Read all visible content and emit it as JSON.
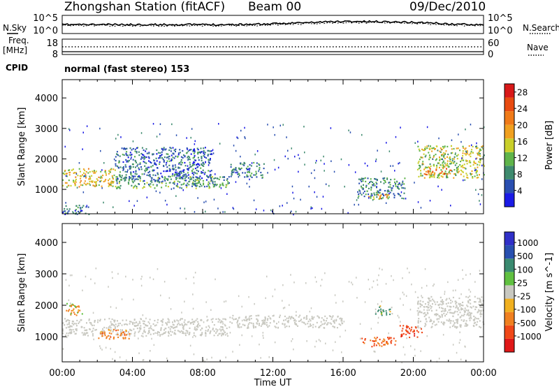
{
  "header": {
    "station": "Zhongshan Station (fitACF)",
    "beam": "Beam 00",
    "date": "09/Dec/2010",
    "mode": "normal (fast stereo) 153"
  },
  "side_labels": {
    "nsky": "N.Sky",
    "nsearch": "N.Search",
    "freq_line1": "Freq.",
    "freq_line2": "[MHz]",
    "nave": "Nave",
    "cpid": "CPID"
  },
  "noise_axis": {
    "left_ticks": [
      "10^5",
      "10^0"
    ],
    "right_ticks": [
      "10^5",
      "10^0"
    ]
  },
  "freq_axis": {
    "left_ticks": [
      "18",
      "8"
    ],
    "right_ticks": [
      "60",
      "0"
    ]
  },
  "colors": {
    "power_scale": [
      "#1a1ae6",
      "#2a4fb0",
      "#3e8a6e",
      "#5fb44a",
      "#c9cf2a",
      "#f0a020",
      "#f07a18",
      "#e84a10",
      "#d81818"
    ],
    "velocity_scale": [
      "#3030c8",
      "#2850b0",
      "#3a8a70",
      "#60c040",
      "#c8c8c0",
      "#f0b020",
      "#f08020",
      "#f04818",
      "#e01818"
    ]
  },
  "chart_data": [
    {
      "type": "line",
      "panel": "noise",
      "series": [
        {
          "name": "N.Sky",
          "x": [
            "00:00",
            "02:00",
            "04:00",
            "06:00",
            "08:00",
            "10:00",
            "12:00",
            "14:00",
            "16:00",
            "18:00",
            "20:00",
            "22:00",
            "24:00"
          ],
          "values": [
            1000,
            1000,
            1000,
            1000,
            1000,
            1100,
            1800,
            6000,
            18000,
            15000,
            8000,
            1500,
            1200
          ]
        },
        {
          "name": "N.Search",
          "x": [
            "00:00",
            "02:00",
            "04:00",
            "06:00",
            "08:00",
            "10:00",
            "12:00",
            "14:00",
            "16:00",
            "18:00",
            "20:00",
            "22:00",
            "24:00"
          ],
          "values": [
            400,
            400,
            420,
            420,
            400,
            450,
            700,
            2500,
            7000,
            6000,
            3000,
            600,
            500
          ]
        }
      ],
      "x_ticks": [
        "00:00",
        "04:00",
        "08:00",
        "12:00",
        "16:00",
        "20:00",
        "00:00"
      ],
      "yscale": "log",
      "ylim": [
        1,
        100000
      ]
    },
    {
      "type": "line",
      "panel": "frequency",
      "series": [
        {
          "name": "Freq.",
          "values": [
            10.2,
            10.2,
            10.2,
            10.2,
            10.2,
            10.2,
            10.2
          ]
        },
        {
          "name": "Nave",
          "values": [
            38,
            38,
            38,
            38,
            38,
            38,
            38
          ]
        }
      ],
      "left_ylim": [
        8,
        18
      ],
      "right_ylim": [
        0,
        60
      ]
    },
    {
      "type": "heatmap",
      "panel": "power",
      "xlabel": "",
      "ylabel": "Slant Range [km]",
      "xlim_hours": [
        0,
        24
      ],
      "ylim": [
        200,
        4600
      ],
      "yticks": [
        1000,
        2000,
        3000,
        4000
      ],
      "colorbar": {
        "label": "Power [dB]",
        "ticks": [
          4,
          8,
          12,
          16,
          20,
          24,
          28
        ],
        "range": [
          0,
          30
        ]
      },
      "echo_regions": [
        {
          "t0": 0.0,
          "t1": 3.0,
          "r0": 1100,
          "r1": 1700,
          "level": 16
        },
        {
          "t0": 3.0,
          "t1": 9.5,
          "r0": 1050,
          "r1": 1450,
          "level": 10
        },
        {
          "t0": 3.0,
          "t1": 8.5,
          "r0": 1300,
          "r1": 2400,
          "level": 6
        },
        {
          "t0": 9.5,
          "t1": 11.5,
          "r0": 1400,
          "r1": 1900,
          "level": 8
        },
        {
          "t0": 16.8,
          "t1": 19.5,
          "r0": 700,
          "r1": 1400,
          "level": 8
        },
        {
          "t0": 17.4,
          "t1": 18.6,
          "r0": 700,
          "r1": 850,
          "level": 20
        },
        {
          "t0": 20.2,
          "t1": 24.0,
          "r0": 1400,
          "r1": 2450,
          "level": 14
        },
        {
          "t0": 20.6,
          "t1": 22.2,
          "r0": 1500,
          "r1": 1700,
          "level": 22
        },
        {
          "t0": 0.0,
          "t1": 1.5,
          "r0": 200,
          "r1": 500,
          "level": 6
        }
      ]
    },
    {
      "type": "heatmap",
      "panel": "velocity",
      "xlabel": "Time UT",
      "ylabel": "Slant Range [km]",
      "xlim_hours": [
        0,
        24
      ],
      "ylim": [
        200,
        4600
      ],
      "yticks": [
        1000,
        2000,
        3000,
        4000
      ],
      "x_ticks": [
        "00:00",
        "04:00",
        "08:00",
        "12:00",
        "16:00",
        "20:00",
        "00:00"
      ],
      "colorbar": {
        "label": "Velocity [m s^-1]",
        "ticks": [
          1000,
          500,
          100,
          25,
          -25,
          -100,
          -500,
          -1000
        ]
      },
      "echo_regions": [
        {
          "t0": 0.0,
          "t1": 9.5,
          "r0": 1050,
          "r1": 1600,
          "velocity": 0
        },
        {
          "t0": 9.5,
          "t1": 16.0,
          "r0": 1300,
          "r1": 1700,
          "velocity": 0
        },
        {
          "t0": 2.0,
          "t1": 3.8,
          "r0": 950,
          "r1": 1250,
          "velocity": -300
        },
        {
          "t0": 17.0,
          "t1": 19.0,
          "r0": 700,
          "r1": 1000,
          "velocity": -500
        },
        {
          "t0": 19.2,
          "t1": 20.5,
          "r0": 1000,
          "r1": 1400,
          "velocity": -900
        },
        {
          "t0": 20.2,
          "t1": 24.0,
          "r0": 1300,
          "r1": 2300,
          "velocity": 0
        },
        {
          "t0": 17.8,
          "t1": 18.8,
          "r0": 1700,
          "r1": 2000,
          "velocity": 150
        },
        {
          "t0": 0.2,
          "t1": 1.2,
          "r0": 1700,
          "r1": 2100,
          "velocity": -150
        }
      ]
    }
  ]
}
